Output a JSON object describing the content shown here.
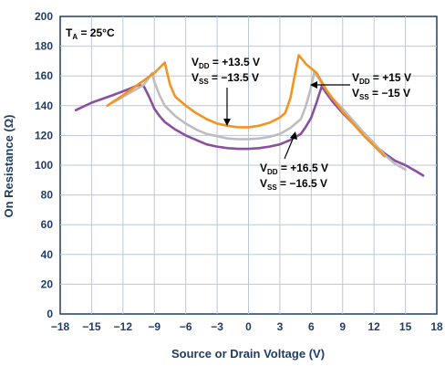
{
  "chart_data": {
    "type": "line",
    "xlabel": "Source or Drain Voltage (V)",
    "ylabel": "On Resistance (Ω)",
    "xlim": [
      -18,
      18
    ],
    "ylim": [
      0,
      200
    ],
    "x_ticks": [
      "−18",
      "−15",
      "−12",
      "−9",
      "−6",
      "−3",
      "0",
      "3",
      "6",
      "9",
      "12",
      "15",
      "18"
    ],
    "y_ticks": [
      "0",
      "20",
      "40",
      "60",
      "80",
      "100",
      "120",
      "140",
      "160",
      "180",
      "200"
    ],
    "grid": true,
    "annotations": {
      "temp": {
        "main": "T",
        "sub": "A",
        "rest": " = 25°C"
      },
      "a135": {
        "l1_main": "V",
        "l1_sub": "DD",
        "l1_rest": " = +13.5 V",
        "l2_main": "V",
        "l2_sub": "SS",
        "l2_rest": " = −13.5 V"
      },
      "a15": {
        "l1_main": "V",
        "l1_sub": "DD",
        "l1_rest": " = +15 V",
        "l2_main": "V",
        "l2_sub": "SS",
        "l2_rest": " = −15 V"
      },
      "a165": {
        "l1_main": "V",
        "l1_sub": "DD",
        "l1_rest": " = +16.5 V",
        "l2_main": "V",
        "l2_sub": "SS",
        "l2_rest": " = −16.5 V"
      }
    },
    "series": [
      {
        "color": "#8a4f9e",
        "points": [
          [
            -16.5,
            137
          ],
          [
            -15,
            142
          ],
          [
            -13,
            147
          ],
          [
            -11.5,
            151
          ],
          [
            -10.5,
            154
          ],
          [
            -10,
            153
          ],
          [
            -9.5,
            146
          ],
          [
            -9,
            138
          ],
          [
            -8.5,
            133
          ],
          [
            -8,
            129
          ],
          [
            -7,
            124
          ],
          [
            -6,
            120
          ],
          [
            -5,
            117
          ],
          [
            -4,
            114
          ],
          [
            -3,
            112.5
          ],
          [
            -2,
            111.5
          ],
          [
            -1,
            111
          ],
          [
            0,
            111
          ],
          [
            1,
            111.5
          ],
          [
            2,
            112.5
          ],
          [
            3,
            114
          ],
          [
            4,
            117
          ],
          [
            5,
            121
          ],
          [
            5.5,
            126
          ],
          [
            6,
            132
          ],
          [
            6.5,
            142
          ],
          [
            7,
            153
          ],
          [
            7.5,
            148
          ],
          [
            8,
            143
          ],
          [
            9,
            135
          ],
          [
            10,
            128
          ],
          [
            11,
            121
          ],
          [
            12,
            114
          ],
          [
            13,
            108
          ],
          [
            14,
            103
          ],
          [
            15,
            100
          ],
          [
            16,
            96
          ],
          [
            16.7,
            93
          ]
        ]
      },
      {
        "color": "#bdbdbd",
        "points": [
          [
            -13,
            142
          ],
          [
            -12,
            146
          ],
          [
            -11,
            150
          ],
          [
            -10,
            154
          ],
          [
            -9.5,
            159
          ],
          [
            -9.2,
            162
          ],
          [
            -9,
            156
          ],
          [
            -8.5,
            147
          ],
          [
            -8,
            140
          ],
          [
            -7,
            133
          ],
          [
            -6,
            128
          ],
          [
            -5,
            124
          ],
          [
            -4,
            121
          ],
          [
            -3,
            119.5
          ],
          [
            -2,
            118
          ],
          [
            -1,
            117.5
          ],
          [
            0,
            117.5
          ],
          [
            1,
            118
          ],
          [
            2,
            119
          ],
          [
            3,
            121
          ],
          [
            4,
            125
          ],
          [
            5,
            131
          ],
          [
            5.5,
            140
          ],
          [
            6,
            153
          ],
          [
            6.3,
            163
          ],
          [
            7,
            155
          ],
          [
            8,
            145
          ],
          [
            9,
            138
          ],
          [
            10,
            130
          ],
          [
            11,
            122
          ],
          [
            12,
            115
          ],
          [
            13,
            107
          ],
          [
            14,
            101
          ],
          [
            15,
            97
          ]
        ]
      },
      {
        "color": "#f39321",
        "points": [
          [
            -13.5,
            140
          ],
          [
            -12,
            147
          ],
          [
            -11,
            152
          ],
          [
            -10,
            157
          ],
          [
            -9,
            162
          ],
          [
            -8,
            169
          ],
          [
            -7.8,
            163
          ],
          [
            -7.5,
            154
          ],
          [
            -7,
            146
          ],
          [
            -6,
            140
          ],
          [
            -5,
            135
          ],
          [
            -4,
            131
          ],
          [
            -3,
            128
          ],
          [
            -2,
            126.5
          ],
          [
            -1,
            125.5
          ],
          [
            0,
            125.5
          ],
          [
            1,
            126.5
          ],
          [
            2,
            128.5
          ],
          [
            3,
            132
          ],
          [
            3.5,
            135
          ],
          [
            4,
            145
          ],
          [
            4.5,
            163
          ],
          [
            4.8,
            174
          ],
          [
            5.5,
            168
          ],
          [
            6.5,
            162
          ],
          [
            7.5,
            150
          ],
          [
            9,
            136
          ],
          [
            10,
            128
          ],
          [
            11,
            120
          ],
          [
            12,
            113
          ],
          [
            13,
            106
          ]
        ]
      }
    ]
  }
}
